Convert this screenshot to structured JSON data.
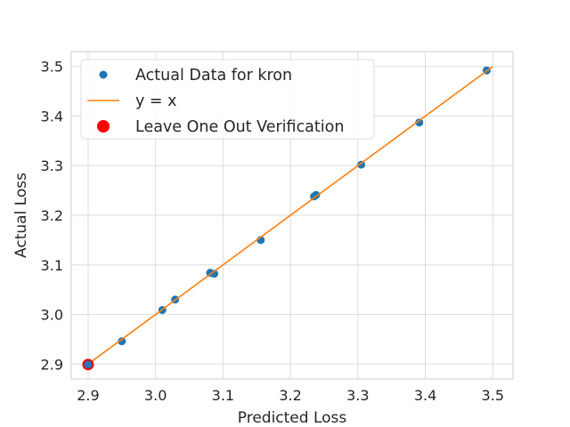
{
  "chart_data": {
    "type": "scatter",
    "title": "",
    "xlabel": "Predicted Loss",
    "ylabel": "Actual Loss",
    "xlim": [
      2.875,
      3.53
    ],
    "ylim": [
      2.87,
      3.53
    ],
    "x_ticks": [
      "2.9",
      "3.0",
      "3.1",
      "3.2",
      "3.3",
      "3.4",
      "3.5"
    ],
    "y_ticks": [
      "2.9",
      "3.0",
      "3.1",
      "3.2",
      "3.3",
      "3.4",
      "3.5"
    ],
    "grid": true,
    "legend_position": "top-left",
    "series": [
      {
        "name": "Actual Data for kron",
        "kind": "scatter",
        "color": "#1f77b4",
        "points": [
          [
            2.95,
            2.946
          ],
          [
            3.01,
            3.009
          ],
          [
            3.029,
            3.03
          ],
          [
            3.081,
            3.084
          ],
          [
            3.087,
            3.082
          ],
          [
            3.156,
            3.15
          ],
          [
            3.235,
            3.238
          ],
          [
            3.238,
            3.241
          ],
          [
            3.305,
            3.302
          ],
          [
            3.391,
            3.387
          ],
          [
            3.491,
            3.492
          ]
        ]
      },
      {
        "name": "y = x",
        "kind": "line",
        "color": "#ff7f0e",
        "points": [
          [
            2.9,
            2.9
          ],
          [
            3.5,
            3.5
          ]
        ]
      },
      {
        "name": "Leave One Out Verification",
        "kind": "scatter",
        "color": "#ff0000",
        "points": [
          [
            2.9,
            2.899
          ]
        ]
      }
    ]
  }
}
